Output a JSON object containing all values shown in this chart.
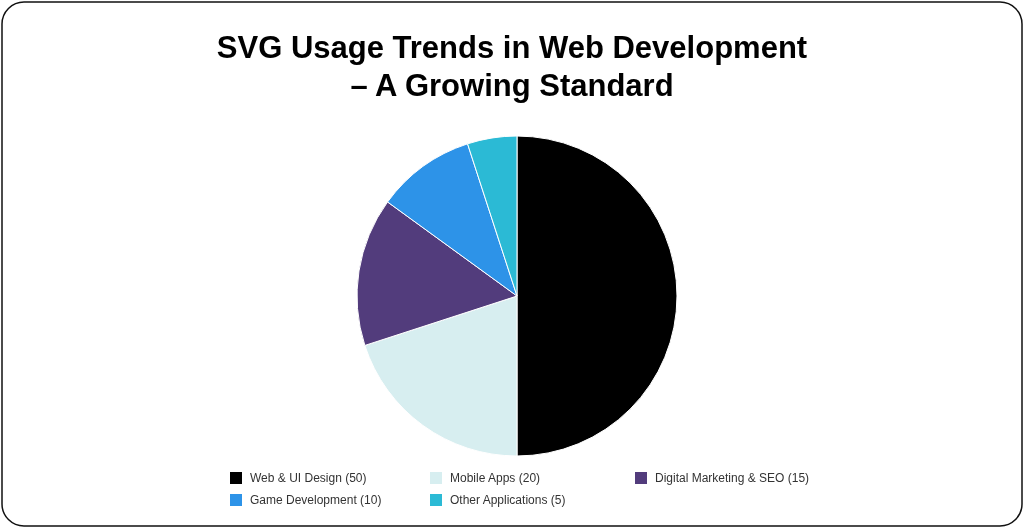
{
  "chart_data": {
    "type": "pie",
    "title": "SVG Usage Trends in Web Development – A Growing Standard",
    "categories": [
      "Web & UI Design (50)",
      "Mobile Apps (20)",
      "Digital Marketing & SEO (15)",
      "Game Development (10)",
      "Other Applications (5)"
    ],
    "values": [
      50,
      20,
      15,
      10,
      5
    ],
    "colors": [
      "#000000",
      "#d7eef0",
      "#523c7c",
      "#2d93e8",
      "#2bbad5"
    ],
    "legend": "bottom"
  }
}
